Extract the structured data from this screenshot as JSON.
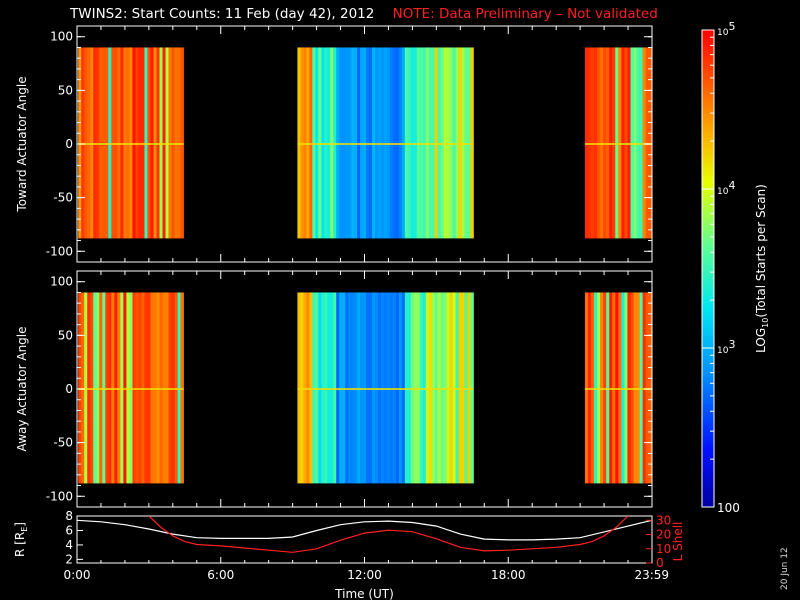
{
  "title": "TWINS2: Start Counts: 11 Feb (day  42), 2012",
  "note": "NOTE: Data Preliminary – Not validated",
  "datestamp": "20 Jun 12",
  "colors": {
    "title": "#ffffff",
    "note": "#ff2020",
    "red_line": "#ff2020",
    "white_line": "#ffffff"
  },
  "chart_data": [
    {
      "type": "heatmap",
      "ylabel": "Toward Actuator Angle",
      "ylim": [
        -110,
        110
      ],
      "yticks": [
        100,
        50,
        0,
        -50,
        -100
      ],
      "xlim_hours": [
        0,
        24
      ],
      "data_blocks_hours": [
        [
          0.05,
          4.45
        ],
        [
          9.2,
          16.55
        ],
        [
          21.2,
          23.99
        ]
      ],
      "angle_range": [
        -88,
        90
      ]
    },
    {
      "type": "heatmap",
      "ylabel": "Away Actuator Angle",
      "ylim": [
        -110,
        110
      ],
      "yticks": [
        100,
        50,
        0,
        -50,
        -100
      ],
      "xlim_hours": [
        0,
        24
      ],
      "data_blocks_hours": [
        [
          0.05,
          4.45
        ],
        [
          9.2,
          16.55
        ],
        [
          21.2,
          23.99
        ]
      ],
      "angle_range": [
        -88,
        90
      ]
    },
    {
      "type": "line",
      "ylabel_left": "R [R",
      "ylabel_left_sub": "E",
      "ylabel_left_end": "]",
      "ylabel_right": "L Shell",
      "ylim_left": [
        1.5,
        8
      ],
      "yticks_left": [
        8,
        6,
        4,
        2
      ],
      "ylim_right": [
        0,
        33
      ],
      "yticks_right": [
        30,
        20,
        10,
        0
      ],
      "xlabel": "Time (UT)",
      "xticks": [
        "0:00",
        "6:00",
        "12:00",
        "18:00",
        "23:59"
      ],
      "xtick_hours": [
        0,
        6,
        12,
        18,
        23.99
      ],
      "series": [
        {
          "color": "#ffffff",
          "axis": "left",
          "x": [
            0,
            1,
            2,
            3,
            4,
            5,
            6,
            7,
            8,
            9,
            10,
            11,
            12,
            13,
            14,
            15,
            16,
            17,
            18,
            19,
            20,
            21,
            22,
            23,
            24
          ],
          "y": [
            7.4,
            7.2,
            6.8,
            6.2,
            5.5,
            5.0,
            4.9,
            4.9,
            4.9,
            5.1,
            6.0,
            6.8,
            7.2,
            7.3,
            7.1,
            6.6,
            5.5,
            4.8,
            4.7,
            4.7,
            4.8,
            5.0,
            5.8,
            6.6,
            7.4
          ]
        },
        {
          "color": "#ff2020",
          "axis": "right",
          "x": [
            3.0,
            3.5,
            4.0,
            4.5,
            5.0,
            6.0,
            7.0,
            8.0,
            9.0,
            10.0,
            11.0,
            12.0,
            13.0,
            14.0,
            15.0,
            16.0,
            17.0,
            18.0,
            19.0,
            20.0,
            21.0,
            21.5,
            22.0,
            22.5,
            23.0
          ],
          "y": [
            33,
            25,
            19,
            15,
            13,
            12,
            10.5,
            9,
            7.5,
            10,
            16,
            21,
            23,
            22,
            17,
            11,
            8.5,
            9,
            10,
            11,
            13,
            15,
            19,
            25,
            33
          ]
        }
      ]
    }
  ],
  "colorbar": {
    "label_log": "LOG",
    "label_sub": "10",
    "label_rest": "(Total Starts per Scan)",
    "ticks": [
      {
        "base": "10",
        "exp": "5",
        "value": 100000
      },
      {
        "base": "10",
        "exp": "4",
        "value": 10000
      },
      {
        "base": "10",
        "exp": "3",
        "value": 1000
      },
      {
        "base": "100",
        "exp": "",
        "value": 100
      }
    ],
    "range": [
      100,
      100000
    ]
  }
}
